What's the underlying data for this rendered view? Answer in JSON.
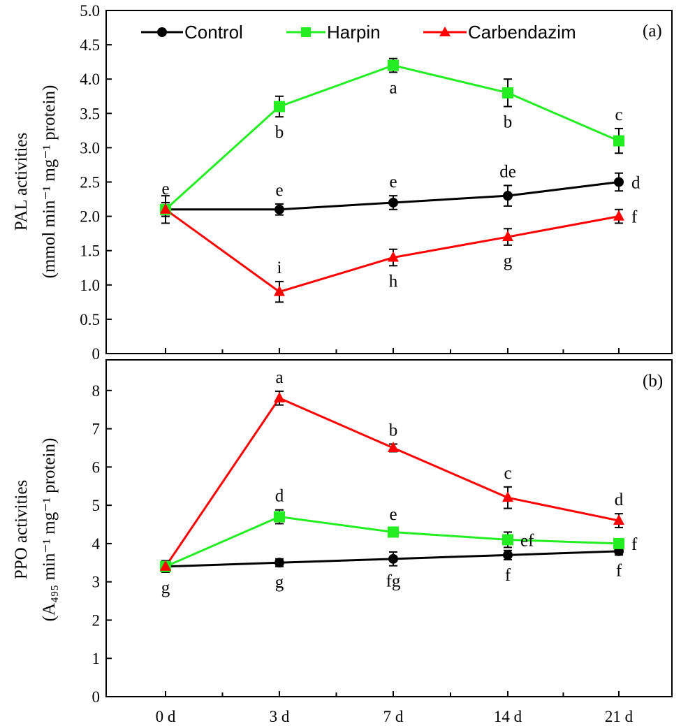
{
  "chart_data": [
    {
      "panel": "(a)",
      "type": "line",
      "categories": [
        "0 d",
        "3 d",
        "7 d",
        "14 d",
        "21 d"
      ],
      "ylabel_line1": "PAL activities",
      "ylabel_line2": "(mmol min⁻¹ mg⁻¹ protein)",
      "ylim": [
        0,
        5.0
      ],
      "yticks": [
        "0",
        "0.5",
        "1.0",
        "1.5",
        "2.0",
        "2.5",
        "3.0",
        "3.5",
        "4.0",
        "4.5",
        "5.0"
      ],
      "series": [
        {
          "name": "Control",
          "color": "#000000",
          "marker": "circle",
          "values": [
            2.1,
            2.1,
            2.2,
            2.3,
            2.5
          ],
          "errors": [
            0.1,
            0.08,
            0.1,
            0.15,
            0.13
          ],
          "labels": [
            "e",
            "e",
            "e",
            "de",
            "d"
          ]
        },
        {
          "name": "Harpin",
          "color": "#22ee22",
          "marker": "square",
          "values": [
            2.1,
            3.6,
            4.2,
            3.8,
            3.1
          ],
          "errors": [
            0.1,
            0.15,
            0.1,
            0.2,
            0.18
          ],
          "labels": [
            "",
            "b",
            "a",
            "b",
            "c"
          ]
        },
        {
          "name": "Carbendazim",
          "color": "#ff0000",
          "marker": "triangle",
          "values": [
            2.1,
            0.9,
            1.4,
            1.7,
            2.0
          ],
          "errors": [
            0.2,
            0.15,
            0.12,
            0.12,
            0.1
          ],
          "labels": [
            "",
            "i",
            "h",
            "g",
            "f"
          ]
        }
      ]
    },
    {
      "panel": "(b)",
      "type": "line",
      "categories": [
        "0 d",
        "3 d",
        "7 d",
        "14 d",
        "21 d"
      ],
      "ylabel_line1": "PPO activities",
      "ylabel_line2": "(A₄₉₅ min⁻¹ mg⁻¹ protein)",
      "ylim": [
        0,
        8.8
      ],
      "yticks": [
        "0",
        "1",
        "2",
        "3",
        "4",
        "5",
        "6",
        "7",
        "8"
      ],
      "series": [
        {
          "name": "Control",
          "color": "#000000",
          "marker": "circle",
          "values": [
            3.4,
            3.5,
            3.6,
            3.7,
            3.8
          ],
          "errors": [
            0.15,
            0.1,
            0.18,
            0.12,
            0.1
          ],
          "labels": [
            "g",
            "g",
            "fg",
            "f",
            "f"
          ]
        },
        {
          "name": "Harpin",
          "color": "#22ee22",
          "marker": "square",
          "values": [
            3.4,
            4.7,
            4.3,
            4.1,
            4.0
          ],
          "errors": [
            0.15,
            0.18,
            0.1,
            0.2,
            0.1
          ],
          "labels": [
            "",
            "d",
            "e",
            "ef",
            "f"
          ]
        },
        {
          "name": "Carbendazim",
          "color": "#ff0000",
          "marker": "triangle",
          "values": [
            3.4,
            7.8,
            6.5,
            5.2,
            4.6
          ],
          "errors": [
            0.15,
            0.18,
            0.1,
            0.28,
            0.18
          ],
          "labels": [
            "",
            "a",
            "b",
            "c",
            "d"
          ]
        }
      ]
    }
  ],
  "legend": [
    "Control",
    "Harpin",
    "Carbendazim"
  ]
}
